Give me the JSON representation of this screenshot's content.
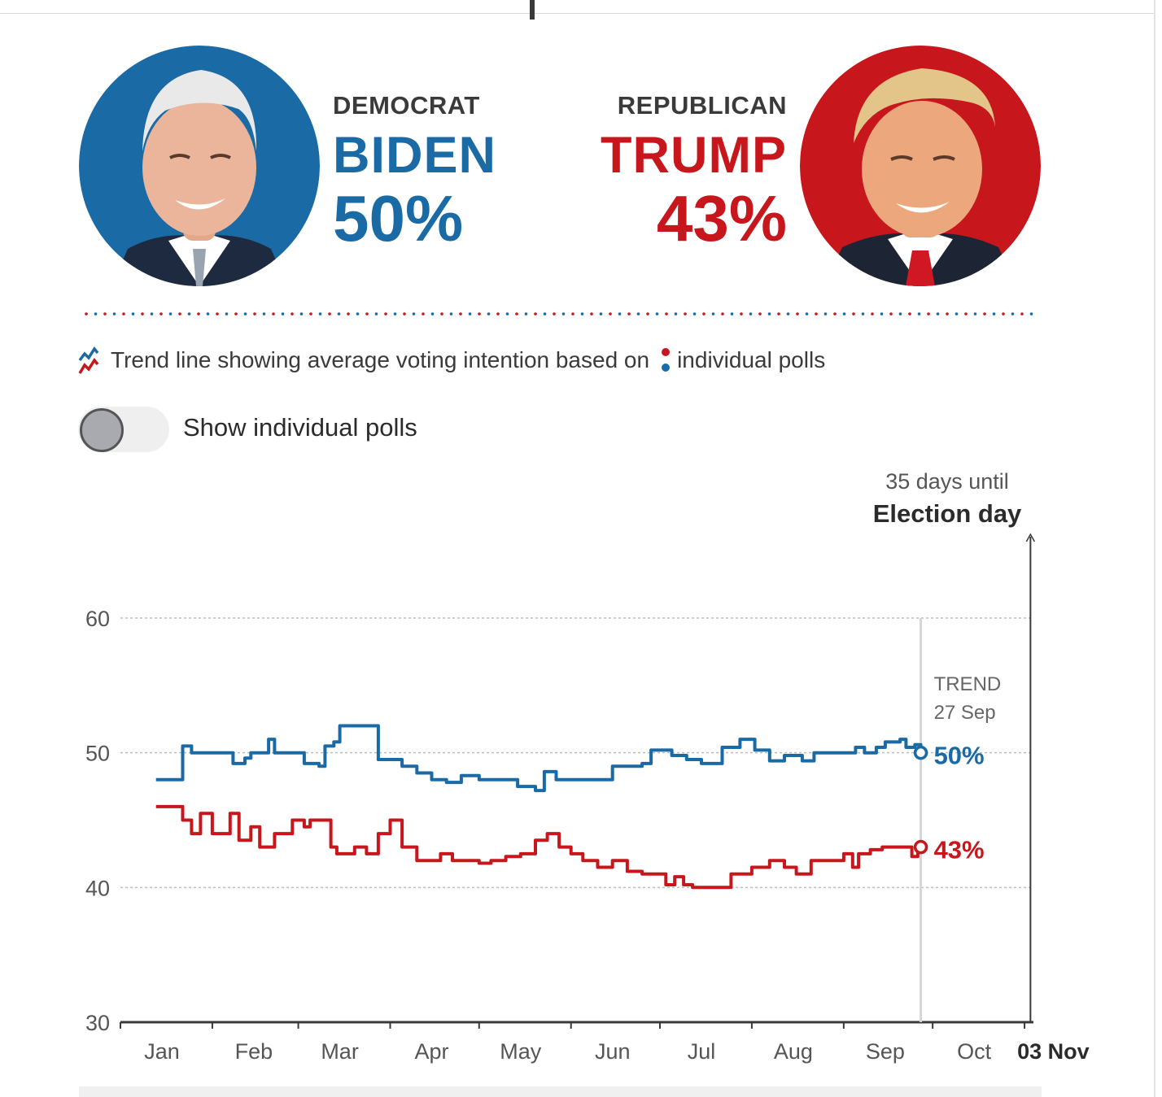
{
  "header": {
    "democrat": {
      "party": "DEMOCRAT",
      "name": "BIDEN",
      "percent": "50%",
      "color": "#1a6aa6"
    },
    "republican": {
      "party": "REPUBLICAN",
      "name": "TRUMP",
      "percent": "43%",
      "color": "#c8161d"
    }
  },
  "legend": {
    "trend_text": "Trend line showing average voting intention based on",
    "polls_text": "individual polls"
  },
  "toggle": {
    "label": "Show individual polls",
    "on": false
  },
  "election": {
    "countdown": "35 days until",
    "label": "Election day"
  },
  "chart_data": {
    "type": "line",
    "ylim": [
      30,
      60
    ],
    "yticks": [
      30,
      40,
      50,
      60
    ],
    "grid": true,
    "x_start": "2020-01-01",
    "x_end": "2020-11-04",
    "months": [
      {
        "label": "Jan",
        "date": "2020-01-15"
      },
      {
        "label": "Feb",
        "date": "2020-02-15"
      },
      {
        "label": "Mar",
        "date": "2020-03-15"
      },
      {
        "label": "Apr",
        "date": "2020-04-15"
      },
      {
        "label": "May",
        "date": "2020-05-15"
      },
      {
        "label": "Jun",
        "date": "2020-06-15"
      },
      {
        "label": "Jul",
        "date": "2020-07-15"
      },
      {
        "label": "Aug",
        "date": "2020-08-15"
      },
      {
        "label": "Sep",
        "date": "2020-09-15"
      },
      {
        "label": "Oct",
        "date": "2020-10-15"
      }
    ],
    "month_boundaries": [
      "2020-01-01",
      "2020-02-01",
      "2020-03-01",
      "2020-04-01",
      "2020-05-01",
      "2020-06-01",
      "2020-07-01",
      "2020-08-01",
      "2020-09-01",
      "2020-10-01",
      "2020-11-01"
    ],
    "election_date": "2020-11-03",
    "election_label": "03 Nov",
    "trend_date": "2020-09-27",
    "trend_label": "TREND",
    "trend_date_label": "27 Sep",
    "series": [
      {
        "color": "#1a6aa6",
        "end_label": "50%",
        "points": [
          [
            "2020-01-13",
            48
          ],
          [
            "2020-01-20",
            48
          ],
          [
            "2020-01-22",
            50.5
          ],
          [
            "2020-01-25",
            50
          ],
          [
            "2020-02-01",
            50
          ],
          [
            "2020-02-06",
            50
          ],
          [
            "2020-02-08",
            49.2
          ],
          [
            "2020-02-12",
            49.6
          ],
          [
            "2020-02-14",
            50
          ],
          [
            "2020-02-18",
            50
          ],
          [
            "2020-02-20",
            51
          ],
          [
            "2020-02-22",
            50
          ],
          [
            "2020-03-01",
            50
          ],
          [
            "2020-03-03",
            49.2
          ],
          [
            "2020-03-08",
            49
          ],
          [
            "2020-03-10",
            50.5
          ],
          [
            "2020-03-13",
            50.8
          ],
          [
            "2020-03-15",
            52
          ],
          [
            "2020-03-25",
            52
          ],
          [
            "2020-03-28",
            49.5
          ],
          [
            "2020-04-05",
            49
          ],
          [
            "2020-04-10",
            48.5
          ],
          [
            "2020-04-15",
            48
          ],
          [
            "2020-04-20",
            47.8
          ],
          [
            "2020-04-25",
            48.3
          ],
          [
            "2020-05-01",
            48
          ],
          [
            "2020-05-08",
            48
          ],
          [
            "2020-05-14",
            47.5
          ],
          [
            "2020-05-20",
            47.2
          ],
          [
            "2020-05-23",
            48.6
          ],
          [
            "2020-05-27",
            48
          ],
          [
            "2020-06-10",
            48
          ],
          [
            "2020-06-15",
            49
          ],
          [
            "2020-06-25",
            49.2
          ],
          [
            "2020-06-28",
            50.2
          ],
          [
            "2020-07-05",
            49.8
          ],
          [
            "2020-07-10",
            49.5
          ],
          [
            "2020-07-15",
            49.2
          ],
          [
            "2020-07-20",
            49.2
          ],
          [
            "2020-07-22",
            50.4
          ],
          [
            "2020-07-28",
            51
          ],
          [
            "2020-08-02",
            50.2
          ],
          [
            "2020-08-07",
            49.4
          ],
          [
            "2020-08-12",
            49.8
          ],
          [
            "2020-08-18",
            49.4
          ],
          [
            "2020-08-22",
            50
          ],
          [
            "2020-09-01",
            50
          ],
          [
            "2020-09-05",
            50.4
          ],
          [
            "2020-09-08",
            50
          ],
          [
            "2020-09-12",
            50.4
          ],
          [
            "2020-09-15",
            50.8
          ],
          [
            "2020-09-20",
            51
          ],
          [
            "2020-09-22",
            50.4
          ],
          [
            "2020-09-25",
            50.6
          ],
          [
            "2020-09-27",
            50
          ]
        ]
      },
      {
        "color": "#c8161d",
        "end_label": "43%",
        "points": [
          [
            "2020-01-13",
            46
          ],
          [
            "2020-01-20",
            46
          ],
          [
            "2020-01-22",
            45
          ],
          [
            "2020-01-25",
            44
          ],
          [
            "2020-01-28",
            45.5
          ],
          [
            "2020-02-01",
            44
          ],
          [
            "2020-02-05",
            44
          ],
          [
            "2020-02-07",
            45.5
          ],
          [
            "2020-02-10",
            43.5
          ],
          [
            "2020-02-14",
            44.5
          ],
          [
            "2020-02-17",
            43
          ],
          [
            "2020-02-22",
            44
          ],
          [
            "2020-02-28",
            45
          ],
          [
            "2020-03-03",
            44.5
          ],
          [
            "2020-03-05",
            45
          ],
          [
            "2020-03-12",
            43
          ],
          [
            "2020-03-14",
            42.5
          ],
          [
            "2020-03-20",
            43
          ],
          [
            "2020-03-24",
            42.5
          ],
          [
            "2020-03-28",
            44
          ],
          [
            "2020-04-01",
            45
          ],
          [
            "2020-04-05",
            43
          ],
          [
            "2020-04-10",
            42
          ],
          [
            "2020-04-18",
            42.5
          ],
          [
            "2020-04-22",
            42
          ],
          [
            "2020-05-01",
            41.8
          ],
          [
            "2020-05-05",
            42
          ],
          [
            "2020-05-10",
            42.3
          ],
          [
            "2020-05-15",
            42.5
          ],
          [
            "2020-05-20",
            43.5
          ],
          [
            "2020-05-24",
            44
          ],
          [
            "2020-05-28",
            43
          ],
          [
            "2020-06-01",
            42.5
          ],
          [
            "2020-06-05",
            42
          ],
          [
            "2020-06-10",
            41.5
          ],
          [
            "2020-06-15",
            42
          ],
          [
            "2020-06-20",
            41.2
          ],
          [
            "2020-06-25",
            41
          ],
          [
            "2020-06-30",
            41
          ],
          [
            "2020-07-03",
            40.2
          ],
          [
            "2020-07-06",
            40.8
          ],
          [
            "2020-07-09",
            40.2
          ],
          [
            "2020-07-12",
            40
          ],
          [
            "2020-07-20",
            40
          ],
          [
            "2020-07-25",
            41
          ],
          [
            "2020-08-01",
            41.5
          ],
          [
            "2020-08-07",
            42
          ],
          [
            "2020-08-12",
            41.5
          ],
          [
            "2020-08-16",
            41
          ],
          [
            "2020-08-21",
            42
          ],
          [
            "2020-08-28",
            42
          ],
          [
            "2020-09-01",
            42.5
          ],
          [
            "2020-09-04",
            41.5
          ],
          [
            "2020-09-06",
            42.5
          ],
          [
            "2020-09-10",
            42.8
          ],
          [
            "2020-09-14",
            43
          ],
          [
            "2020-09-22",
            43
          ],
          [
            "2020-09-24",
            42.3
          ],
          [
            "2020-09-26",
            42.8
          ],
          [
            "2020-09-27",
            43
          ]
        ]
      }
    ]
  }
}
